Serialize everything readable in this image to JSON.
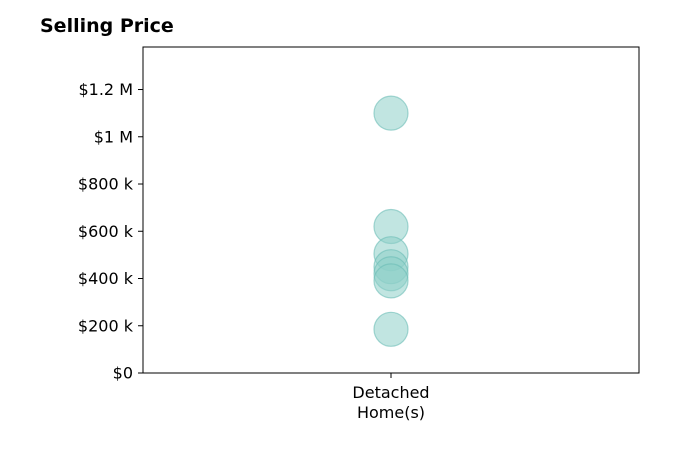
{
  "chart_data": {
    "type": "scatter",
    "title": "Selling Price",
    "categories": [
      "Detached\nHome(s)"
    ],
    "ylim": [
      0,
      1380000
    ],
    "y_ticks": [
      0,
      200000,
      400000,
      600000,
      800000,
      1000000,
      1200000
    ],
    "y_tick_labels": [
      "$0",
      "$200 k",
      "$400 k",
      "$600 k",
      "$800 k",
      "$1 M",
      "$1.2 M"
    ],
    "grid": false,
    "marker_color": "#8ecfc9",
    "marker_edge_color": "#6bbdb5",
    "series": [
      {
        "category": "Detached\nHome(s)",
        "values": [
          1100000,
          620000,
          505000,
          450000,
          420000,
          390000,
          185000
        ]
      }
    ]
  }
}
